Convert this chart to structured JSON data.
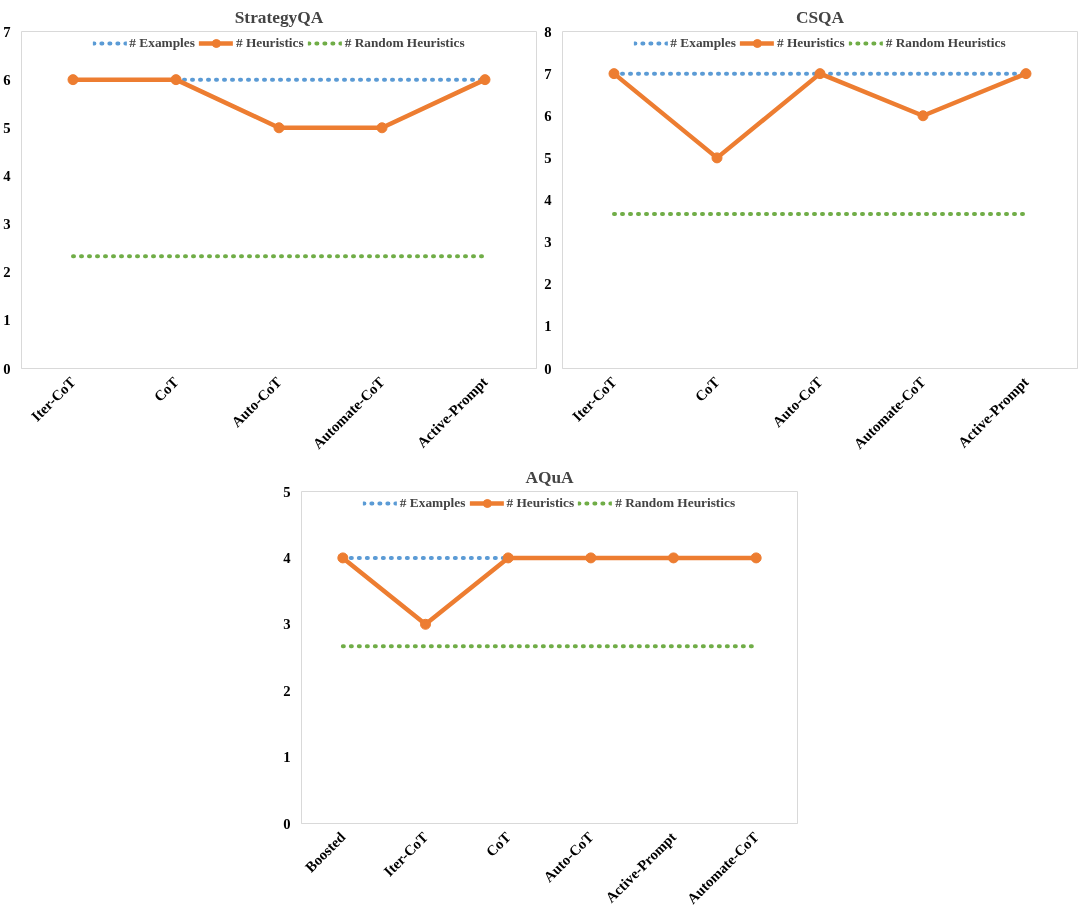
{
  "chart_data": [
    {
      "type": "line",
      "title": "StrategyQA",
      "categories": [
        "Iter-CoT",
        "CoT",
        "Auto-CoT",
        "Automate-CoT",
        "Active-Prompt"
      ],
      "ylim": [
        0,
        7
      ],
      "yticks": [
        0,
        1,
        2,
        3,
        4,
        5,
        6,
        7
      ],
      "legend": "top",
      "series": [
        {
          "name": "# Examples",
          "color": "#5b9bd5",
          "values": [
            null,
            6,
            6,
            6,
            6
          ],
          "line_style": "dotted",
          "marker": "none"
        },
        {
          "name": "# Heuristics",
          "color": "#ed7d31",
          "values": [
            6,
            6,
            5,
            5,
            6
          ],
          "line_style": "solid",
          "marker": "circle"
        },
        {
          "name": "# Random Heuristics",
          "color": "#70ad47",
          "values": [
            2.33,
            2.33,
            2.33,
            2.33,
            2.33
          ],
          "line_style": "dotted",
          "marker": "none"
        }
      ]
    },
    {
      "type": "line",
      "title": "CSQA",
      "categories": [
        "Iter-CoT",
        "CoT",
        "Auto-CoT",
        "Automate-CoT",
        "Active-Prompt"
      ],
      "ylim": [
        0,
        8
      ],
      "yticks": [
        0,
        1,
        2,
        3,
        4,
        5,
        6,
        7,
        8
      ],
      "legend": "top",
      "series": [
        {
          "name": "# Examples",
          "color": "#5b9bd5",
          "values": [
            7,
            7,
            7,
            7,
            7
          ],
          "line_style": "dotted",
          "marker": "none"
        },
        {
          "name": "# Heuristics",
          "color": "#ed7d31",
          "values": [
            7,
            5,
            7,
            6,
            7
          ],
          "line_style": "solid",
          "marker": "circle"
        },
        {
          "name": "# Random Heuristics",
          "color": "#70ad47",
          "values": [
            3.67,
            3.67,
            3.67,
            3.67,
            3.67
          ],
          "line_style": "dotted",
          "marker": "none"
        }
      ]
    },
    {
      "type": "line",
      "title": "AQuA",
      "categories": [
        "Boosted",
        "Iter-CoT",
        "CoT",
        "Auto-CoT",
        "Active-Prompt",
        "Automate-CoT"
      ],
      "ylim": [
        0,
        5
      ],
      "yticks": [
        0,
        1,
        2,
        3,
        4,
        5
      ],
      "legend": "top",
      "series": [
        {
          "name": "# Examples",
          "color": "#5b9bd5",
          "values": [
            4,
            4,
            4,
            null,
            null,
            null
          ],
          "line_style": "dotted",
          "marker": "none"
        },
        {
          "name": "# Heuristics",
          "color": "#ed7d31",
          "values": [
            4,
            3,
            4,
            4,
            4,
            4
          ],
          "line_style": "solid",
          "marker": "circle"
        },
        {
          "name": "# Random Heuristics",
          "color": "#70ad47",
          "values": [
            2.67,
            2.67,
            2.67,
            2.67,
            2.67,
            2.67
          ],
          "line_style": "dotted",
          "marker": "none"
        }
      ]
    }
  ]
}
